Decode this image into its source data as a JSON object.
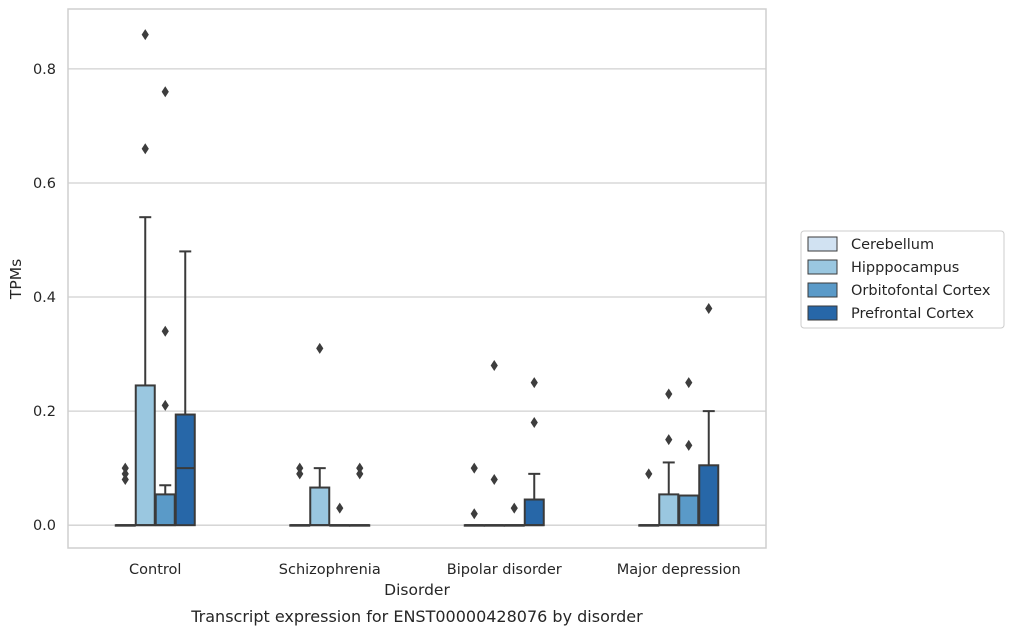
{
  "chart_data": {
    "type": "box",
    "xlabel": "Disorder",
    "ylabel": "TPMs",
    "caption": "Transcript expression for ENST00000428076 by disorder",
    "categories": [
      "Control",
      "Schizophrenia",
      "Bipolar disorder",
      "Major depression"
    ],
    "ylim": [
      -0.04,
      0.905
    ],
    "yticks": [
      0.0,
      0.2,
      0.4,
      0.6,
      0.8
    ],
    "ytick_labels": [
      "0.0",
      "0.2",
      "0.4",
      "0.6",
      "0.8"
    ],
    "grid": true,
    "legend_position": "right",
    "series": [
      {
        "name": "Cerebellum",
        "color": "#d1e2f2",
        "boxes": [
          {
            "q1": 0,
            "median": 0,
            "q3": 0,
            "whisker_low": 0,
            "whisker_high": 0,
            "outliers": [
              0.08,
              0.09,
              0.1
            ]
          },
          {
            "q1": 0,
            "median": 0,
            "q3": 0,
            "whisker_low": 0,
            "whisker_high": 0,
            "outliers": [
              0.09,
              0.1
            ]
          },
          {
            "q1": 0,
            "median": 0,
            "q3": 0,
            "whisker_low": 0,
            "whisker_high": 0,
            "outliers": [
              0.02,
              0.1
            ]
          },
          {
            "q1": 0,
            "median": 0,
            "q3": 0,
            "whisker_low": 0,
            "whisker_high": 0,
            "outliers": [
              0.09
            ]
          }
        ]
      },
      {
        "name": "Hipppocampus",
        "color": "#9ac7e0",
        "boxes": [
          {
            "q1": 0,
            "median": 0,
            "q3": 0.245,
            "whisker_low": 0,
            "whisker_high": 0.54,
            "outliers": [
              0.66,
              0.86
            ]
          },
          {
            "q1": 0,
            "median": 0,
            "q3": 0.066,
            "whisker_low": 0,
            "whisker_high": 0.1,
            "outliers": [
              0.31
            ]
          },
          {
            "q1": 0,
            "median": 0,
            "q3": 0,
            "whisker_low": 0,
            "whisker_high": 0,
            "outliers": [
              0.08,
              0.28
            ]
          },
          {
            "q1": 0,
            "median": 0,
            "q3": 0.054,
            "whisker_low": 0,
            "whisker_high": 0.11,
            "outliers": [
              0.15,
              0.23
            ]
          }
        ]
      },
      {
        "name": "Orbitofontal Cortex",
        "color": "#5a9ac8",
        "boxes": [
          {
            "q1": 0,
            "median": 0,
            "q3": 0.054,
            "whisker_low": 0,
            "whisker_high": 0.07,
            "outliers": [
              0.21,
              0.34,
              0.76
            ]
          },
          {
            "q1": 0,
            "median": 0,
            "q3": 0,
            "whisker_low": 0,
            "whisker_high": 0,
            "outliers": [
              0.03
            ]
          },
          {
            "q1": 0,
            "median": 0,
            "q3": 0,
            "whisker_low": 0,
            "whisker_high": 0,
            "outliers": [
              0.03
            ]
          },
          {
            "q1": 0,
            "median": 0,
            "q3": 0.052,
            "whisker_low": 0,
            "whisker_high": 0.052,
            "outliers": [
              0.14,
              0.25
            ]
          }
        ]
      },
      {
        "name": "Prefrontal Cortex",
        "color": "#2767a8",
        "boxes": [
          {
            "q1": 0,
            "median": 0.1,
            "q3": 0.194,
            "whisker_low": 0,
            "whisker_high": 0.48,
            "outliers": []
          },
          {
            "q1": 0,
            "median": 0,
            "q3": 0,
            "whisker_low": 0,
            "whisker_high": 0,
            "outliers": [
              0.09,
              0.1
            ]
          },
          {
            "q1": 0,
            "median": 0,
            "q3": 0.045,
            "whisker_low": 0,
            "whisker_high": 0.09,
            "outliers": [
              0.18,
              0.25
            ]
          },
          {
            "q1": 0,
            "median": 0,
            "q3": 0.105,
            "whisker_low": 0,
            "whisker_high": 0.2,
            "outliers": [
              0.38
            ]
          }
        ]
      }
    ]
  },
  "colors": {
    "grid": "#d0d0d0",
    "frame": "#cfcfcf",
    "box_edge": "#3a3a3a",
    "flier": "#3d3d3d"
  }
}
